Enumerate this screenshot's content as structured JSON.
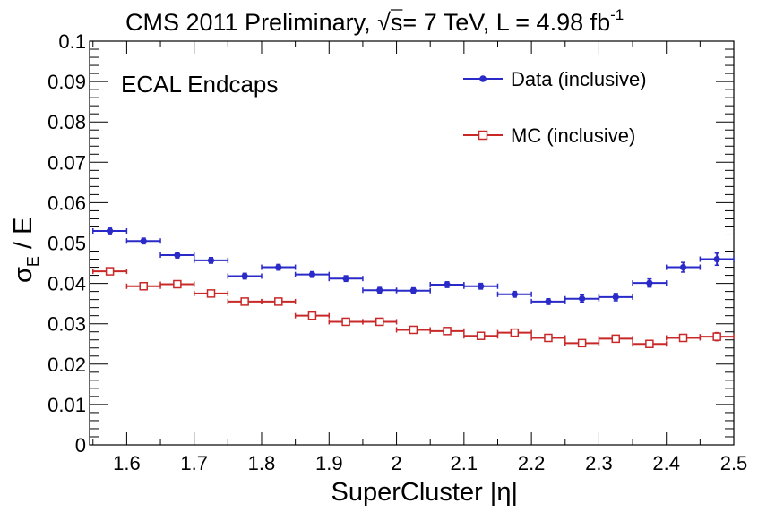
{
  "chart_data": {
    "type": "scatter",
    "title": {
      "main": "CMS 2011 Preliminary, ",
      "sqrt": "√",
      "s_rest": "s= 7 TeV, L = 4.98 fb",
      "sup": "-1"
    },
    "annotation": "ECAL Endcaps",
    "xlabel": "SuperCluster |η|",
    "ylabel": {
      "sigma": "σ",
      "sub": "E",
      "rest": " / E"
    },
    "xlim": [
      1.545,
      2.5
    ],
    "ylim": [
      0,
      0.1
    ],
    "x_ticks": [
      "1.6",
      "1.7",
      "1.8",
      "1.9",
      "2",
      "2.1",
      "2.2",
      "2.3",
      "2.4",
      "2.5"
    ],
    "y_ticks": [
      "0",
      "0.01",
      "0.02",
      "0.03",
      "0.04",
      "0.05",
      "0.06",
      "0.07",
      "0.08",
      "0.09",
      "0.1"
    ],
    "grid": false,
    "legend_position": "top-right",
    "series": [
      {
        "name": "Data (inclusive)",
        "color": "#2a2ac8",
        "marker": "filled-circle",
        "x": [
          1.575,
          1.625,
          1.675,
          1.725,
          1.775,
          1.825,
          1.875,
          1.925,
          1.975,
          2.025,
          2.075,
          2.125,
          2.175,
          2.225,
          2.275,
          2.325,
          2.375,
          2.425,
          2.475
        ],
        "y": [
          0.053,
          0.0505,
          0.047,
          0.0457,
          0.0418,
          0.044,
          0.0422,
          0.0412,
          0.0383,
          0.0382,
          0.0397,
          0.0393,
          0.0373,
          0.0355,
          0.0362,
          0.0366,
          0.0401,
          0.044,
          0.046
        ],
        "yerr": [
          0.0007,
          0.0007,
          0.0007,
          0.0007,
          0.0007,
          0.0007,
          0.0007,
          0.0007,
          0.0007,
          0.0007,
          0.0007,
          0.0007,
          0.0007,
          0.0007,
          0.0009,
          0.0009,
          0.001,
          0.0012,
          0.0015
        ],
        "xerr": 0.025
      },
      {
        "name": "MC (inclusive)",
        "color": "#c82828",
        "marker": "open-square",
        "x": [
          1.575,
          1.625,
          1.675,
          1.725,
          1.775,
          1.825,
          1.875,
          1.925,
          1.975,
          2.025,
          2.075,
          2.125,
          2.175,
          2.225,
          2.275,
          2.325,
          2.375,
          2.425,
          2.475
        ],
        "y": [
          0.043,
          0.0393,
          0.0398,
          0.0375,
          0.0355,
          0.0355,
          0.032,
          0.0305,
          0.0305,
          0.0285,
          0.0282,
          0.027,
          0.0278,
          0.0265,
          0.0252,
          0.0263,
          0.025,
          0.0265,
          0.0268
        ],
        "yerr": [
          0.0003,
          0.0003,
          0.0003,
          0.0003,
          0.0003,
          0.0003,
          0.0003,
          0.0003,
          0.0003,
          0.0003,
          0.0003,
          0.0003,
          0.0003,
          0.0005,
          0.0005,
          0.0008,
          0.0006,
          0.0008,
          0.001
        ],
        "xerr": 0.025
      }
    ]
  }
}
